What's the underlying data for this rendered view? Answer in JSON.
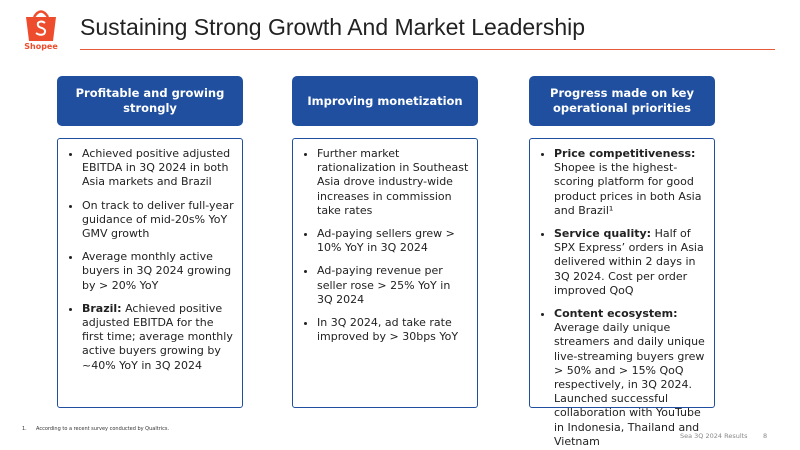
{
  "logo": {
    "label": "Shopee"
  },
  "header": {
    "title": "Sustaining Strong Growth And Market Leadership"
  },
  "columns": [
    {
      "title": "Profitable and growing strongly",
      "bullets": [
        {
          "text": "Achieved positive adjusted EBITDA in 3Q 2024 in both Asia markets and Brazil"
        },
        {
          "text": "On track to deliver full-year guidance of mid-20s% YoY GMV growth"
        },
        {
          "text": "Average monthly active buyers in 3Q 2024 growing by > 20% YoY"
        },
        {
          "bold": "Brazil:",
          "text": "Achieved positive adjusted EBITDA for the first time; average monthly active buyers growing by ~40% YoY in 3Q 2024"
        }
      ]
    },
    {
      "title": "Improving monetization",
      "bullets": [
        {
          "text": "Further market rationalization in Southeast Asia drove industry-wide increases in commission take rates"
        },
        {
          "text": "Ad-paying sellers grew > 10% YoY in 3Q 2024"
        },
        {
          "text": "Ad-paying revenue per seller rose > 25% YoY in 3Q 2024"
        },
        {
          "text": "In 3Q 2024, ad take rate improved by > 30bps YoY"
        }
      ]
    },
    {
      "title": "Progress made on key operational priorities",
      "bullets": [
        {
          "bold": "Price competitiveness:",
          "text": "Shopee is the highest-scoring platform for good product prices in both Asia and Brazil¹"
        },
        {
          "bold": "Service quality:",
          "text": "Half of SPX Express’ orders in Asia delivered within 2 days in 3Q 2024. Cost per order improved QoQ"
        },
        {
          "bold": "Content ecosystem:",
          "text": "Average daily unique streamers and daily unique live-streaming buyers grew > 50% and > 15% QoQ respectively, in 3Q 2024. Launched successful collaboration with YouTube in Indonesia, Thailand and Vietnam"
        }
      ]
    }
  ],
  "footnote": {
    "number": "1.",
    "text": "According to a recent survey conducted by Qualtrics."
  },
  "footer": {
    "label": "Sea 3Q 2024 Results",
    "page": "8"
  }
}
